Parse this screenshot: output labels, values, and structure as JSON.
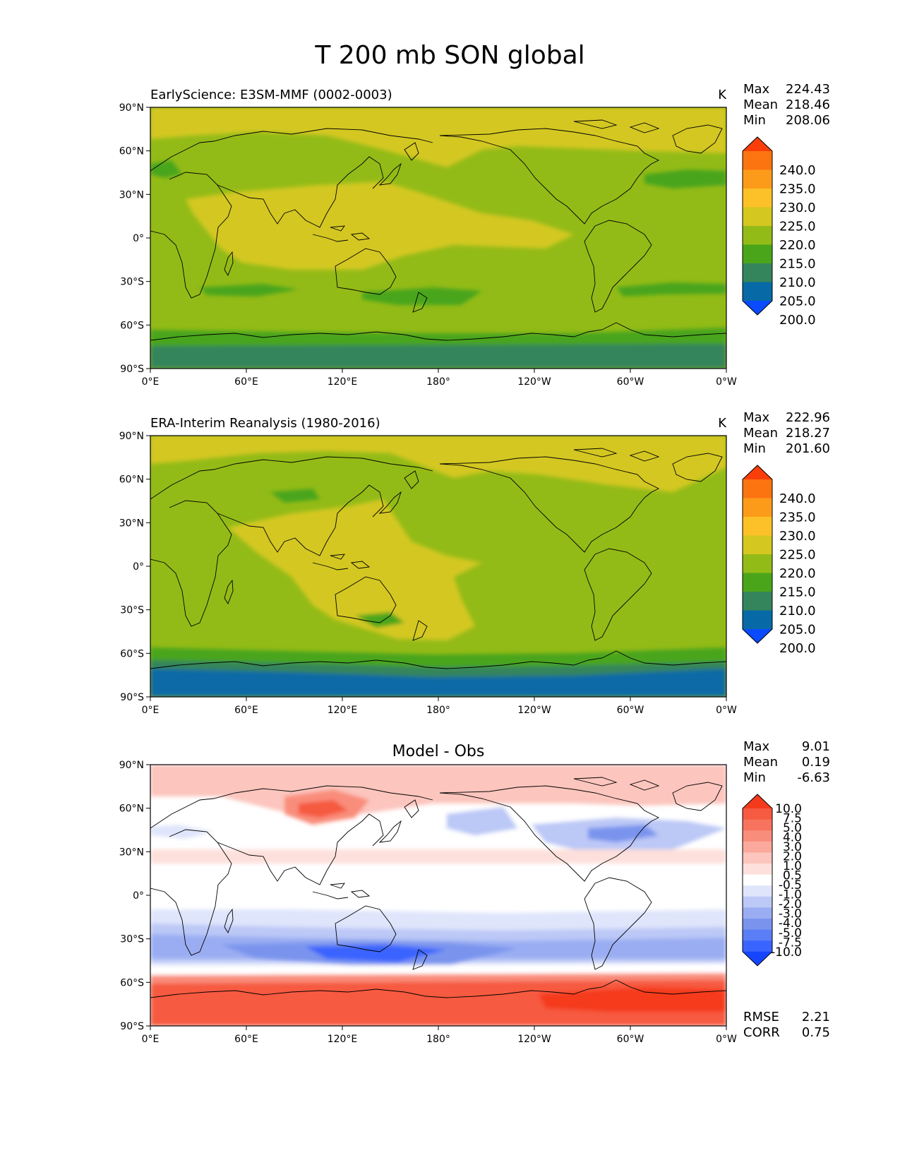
{
  "title": "T 200 mb SON global",
  "lon_ticks": [
    "0°E",
    "60°E",
    "120°E",
    "180°",
    "120°W",
    "60°W",
    "0°W"
  ],
  "lat_ticks": [
    "90°N",
    "60°N",
    "30°N",
    "0°",
    "30°S",
    "60°S",
    "90°S"
  ],
  "panels": [
    {
      "id": "model",
      "left_title": "EarlyScience: E3SM-MMF (0002-0003)",
      "center_title": "",
      "units": "K",
      "stats": [
        {
          "label": "Max",
          "value": "224.43"
        },
        {
          "label": "Mean",
          "value": "218.46"
        },
        {
          "label": "Min",
          "value": "208.06"
        }
      ],
      "colorbar_labels": [
        "240.0",
        "235.0",
        "230.0",
        "225.0",
        "220.0",
        "215.0",
        "210.0",
        "205.0",
        "200.0"
      ]
    },
    {
      "id": "obs",
      "left_title": "ERA-Interim Reanalysis (1980-2016)",
      "center_title": "",
      "units": "K",
      "stats": [
        {
          "label": "Max",
          "value": "222.96"
        },
        {
          "label": "Mean",
          "value": "218.27"
        },
        {
          "label": "Min",
          "value": "201.60"
        }
      ],
      "colorbar_labels": [
        "240.0",
        "235.0",
        "230.0",
        "225.0",
        "220.0",
        "215.0",
        "210.0",
        "205.0",
        "200.0"
      ]
    },
    {
      "id": "diff",
      "left_title": "",
      "center_title": "Model - Obs",
      "units": "",
      "stats": [
        {
          "label": "Max",
          "value": "9.01"
        },
        {
          "label": "Mean",
          "value": "0.19"
        },
        {
          "label": "Min",
          "value": "-6.63"
        }
      ],
      "colorbar_labels": [
        "10.0",
        "7.5",
        "5.0",
        "4.0",
        "3.0",
        "2.0",
        "1.0",
        "0.5",
        "-0.5",
        "-1.0",
        "-2.0",
        "-3.0",
        "-4.0",
        "-5.0",
        "-7.5",
        "-10.0"
      ],
      "bottom_stats": [
        {
          "label": "RMSE",
          "value": "2.21"
        },
        {
          "label": "CORR",
          "value": "0.75"
        }
      ]
    }
  ],
  "colors": {
    "temp_levels": [
      "#0a4bff",
      "#076aa6",
      "#35855c",
      "#4aa51b",
      "#93bb17",
      "#d4c720",
      "#fcc128",
      "#fc9b1a",
      "#fb7410",
      "#fb3d0a"
    ],
    "diff_levels": [
      "#1545ff",
      "#3a64ff",
      "#5a7ef5",
      "#7a94ee",
      "#9aadf2",
      "#bcc8f6",
      "#dfe5fb",
      "#ffffff",
      "#fde0dc",
      "#fcc5bd",
      "#fba99c",
      "#f98d7c",
      "#f7735e",
      "#f65a41",
      "#f53a1c"
    ],
    "land_outline": "#000000"
  }
}
